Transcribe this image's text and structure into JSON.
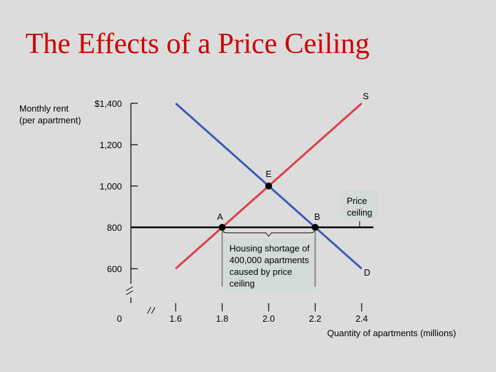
{
  "title": "The Effects of a Price Ceiling",
  "colors": {
    "background": "#dcdcdc",
    "title": "#cc0000",
    "supply": "#e03c4a",
    "demand": "#3a5bb5",
    "axis": "#000000",
    "annotation_box": "#d0d8d8"
  },
  "chart_data": {
    "type": "line",
    "title": "The Effects of a Price Ceiling",
    "ylabel": "Monthly rent (per apartment)",
    "xlabel": "Quantity of apartments (millions)",
    "x_ticks": [
      1.6,
      1.8,
      2.0,
      2.2,
      2.4
    ],
    "x_tick_labels": [
      "1.6",
      "1.8",
      "2.0",
      "2.2",
      "2.4"
    ],
    "y_ticks": [
      600,
      800,
      1000,
      1200,
      1400
    ],
    "y_tick_labels": [
      "600",
      "800",
      "1,000",
      "1,200",
      "$1,400"
    ],
    "origin_label": "0",
    "axis_breaks": true,
    "grid": false,
    "xlim": [
      1.6,
      2.4
    ],
    "ylim": [
      600,
      1400
    ],
    "series": [
      {
        "name": "S",
        "color": "#e03c4a",
        "x": [
          1.6,
          2.4
        ],
        "y": [
          600,
          1400
        ]
      },
      {
        "name": "D",
        "color": "#3a5bb5",
        "x": [
          1.6,
          2.4
        ],
        "y": [
          1400,
          600
        ]
      }
    ],
    "price_ceiling": {
      "label": "Price ceiling",
      "y": 800
    },
    "points": [
      {
        "label": "E",
        "x": 2.0,
        "y": 1000
      },
      {
        "label": "A",
        "x": 1.8,
        "y": 800
      },
      {
        "label": "B",
        "x": 2.2,
        "y": 800
      }
    ],
    "shortage": {
      "from": 1.8,
      "to": 2.2,
      "text": [
        "Housing shortage of",
        "400,000 apartments",
        "caused by price",
        "ceiling"
      ]
    }
  }
}
